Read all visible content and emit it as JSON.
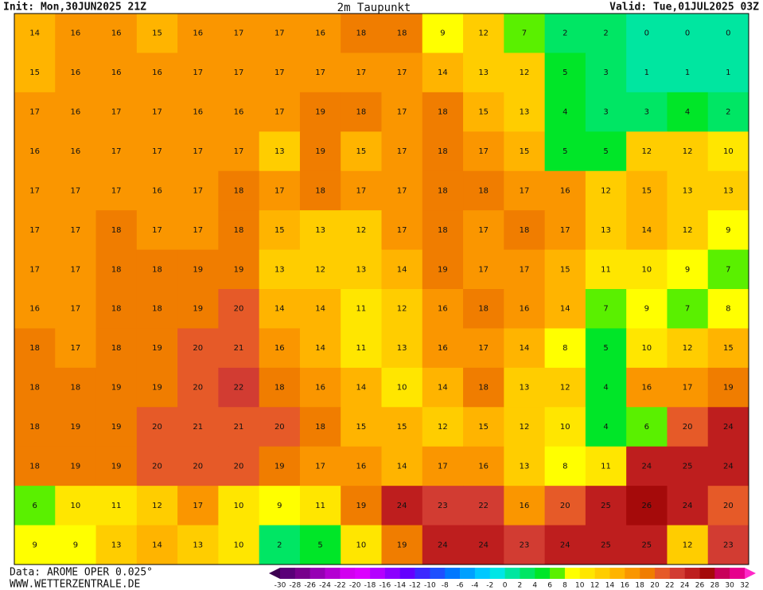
{
  "header": {
    "init": "Init: Mon,30JUN2025 21Z",
    "title": "2m Taupunkt",
    "valid": "Valid: Tue,01JUL2025 03Z"
  },
  "footer": {
    "source": "Data: AROME OPER 0.025°",
    "site": "WWW.WETTERZENTRALE.DE"
  },
  "map": {
    "rows": [
      [
        14,
        16,
        16,
        15,
        16,
        17,
        17,
        16,
        18,
        18,
        9,
        12,
        7,
        2,
        2,
        0,
        0,
        0
      ],
      [
        15,
        16,
        16,
        16,
        17,
        17,
        17,
        17,
        17,
        17,
        14,
        13,
        12,
        5,
        3,
        1,
        1,
        1
      ],
      [
        17,
        16,
        17,
        17,
        16,
        16,
        17,
        19,
        18,
        17,
        18,
        15,
        13,
        4,
        3,
        3,
        4,
        2
      ],
      [
        16,
        16,
        17,
        17,
        17,
        17,
        13,
        19,
        15,
        17,
        18,
        17,
        15,
        5,
        5,
        12,
        12,
        10
      ],
      [
        17,
        17,
        17,
        16,
        17,
        18,
        17,
        18,
        17,
        17,
        18,
        18,
        17,
        16,
        12,
        15,
        13,
        13
      ],
      [
        17,
        17,
        18,
        17,
        17,
        18,
        15,
        13,
        12,
        17,
        18,
        17,
        18,
        17,
        13,
        14,
        12,
        9
      ],
      [
        17,
        17,
        18,
        18,
        19,
        19,
        13,
        12,
        13,
        14,
        19,
        17,
        17,
        15,
        11,
        10,
        9,
        7
      ],
      [
        16,
        17,
        18,
        18,
        19,
        20,
        14,
        14,
        11,
        12,
        16,
        18,
        16,
        14,
        7,
        9,
        7,
        8
      ],
      [
        18,
        17,
        18,
        19,
        20,
        21,
        16,
        14,
        11,
        13,
        16,
        17,
        14,
        8,
        5,
        10,
        12,
        15
      ],
      [
        18,
        18,
        19,
        19,
        20,
        22,
        18,
        16,
        14,
        10,
        14,
        18,
        13,
        12,
        4,
        16,
        17,
        19
      ],
      [
        18,
        19,
        19,
        20,
        21,
        21,
        20,
        18,
        15,
        15,
        12,
        15,
        12,
        10,
        4,
        6,
        20,
        24
      ],
      [
        18,
        19,
        19,
        20,
        20,
        20,
        19,
        17,
        16,
        14,
        17,
        16,
        13,
        8,
        11,
        24,
        25,
        24
      ],
      [
        6,
        10,
        11,
        12,
        17,
        10,
        9,
        11,
        19,
        24,
        23,
        22,
        16,
        20,
        25,
        26,
        24,
        20
      ],
      [
        9,
        9,
        13,
        14,
        13,
        10,
        2,
        5,
        10,
        19,
        24,
        24,
        23,
        24,
        25,
        25,
        12,
        23
      ]
    ]
  },
  "colorbar": {
    "ticks": [
      -30,
      -28,
      -26,
      -24,
      -22,
      -20,
      -18,
      -16,
      -14,
      -12,
      -10,
      -8,
      -6,
      -4,
      -2,
      0,
      2,
      4,
      6,
      8,
      10,
      12,
      14,
      16,
      18,
      20,
      22,
      24,
      26,
      28,
      30,
      32
    ],
    "colors": [
      "#3c0050",
      "#5a0078",
      "#78008c",
      "#9600b4",
      "#b400d2",
      "#d200f0",
      "#dc00ff",
      "#b400ff",
      "#8c00ff",
      "#6400ff",
      "#3c28ff",
      "#1e50ff",
      "#0078ff",
      "#00a0ff",
      "#00c8ff",
      "#00e6e6",
      "#00e6a0",
      "#00e664",
      "#00e628",
      "#5af000",
      "#ffff00",
      "#ffe600",
      "#ffcd00",
      "#ffb400",
      "#fa9600",
      "#f07d00",
      "#e65a28",
      "#d23c32",
      "#be1e1e",
      "#a50a0a",
      "#c8005a",
      "#e6008c",
      "#ff28c8"
    ]
  }
}
